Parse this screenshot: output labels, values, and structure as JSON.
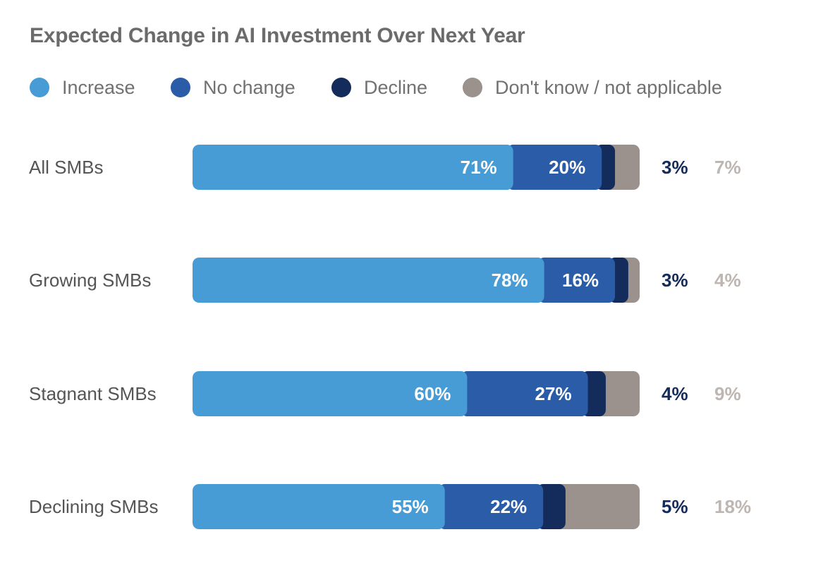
{
  "chart_data": {
    "type": "bar",
    "orientation": "horizontal",
    "stacked": true,
    "title": "Expected Change in AI Investment Over Next Year",
    "categories": [
      "All SMBs",
      "Growing SMBs",
      "Stagnant SMBs",
      "Declining SMBs"
    ],
    "series": [
      {
        "name": "Increase",
        "values": [
          71,
          78,
          60,
          55
        ],
        "color": "#489CD6"
      },
      {
        "name": "No change",
        "values": [
          20,
          16,
          27,
          22
        ],
        "color": "#2B5CA8"
      },
      {
        "name": "Decline",
        "values": [
          3,
          3,
          4,
          5
        ],
        "color": "#142C5C"
      },
      {
        "name": "Don't know / not applicable",
        "values": [
          7,
          4,
          9,
          18
        ],
        "color": "#9B928D"
      }
    ],
    "value_suffix": "%",
    "outside_label_colors": [
      "#142C5C",
      "#BDB6B2"
    ],
    "legend_position": "top-left",
    "grid": false,
    "xlim": [
      0,
      100
    ]
  }
}
